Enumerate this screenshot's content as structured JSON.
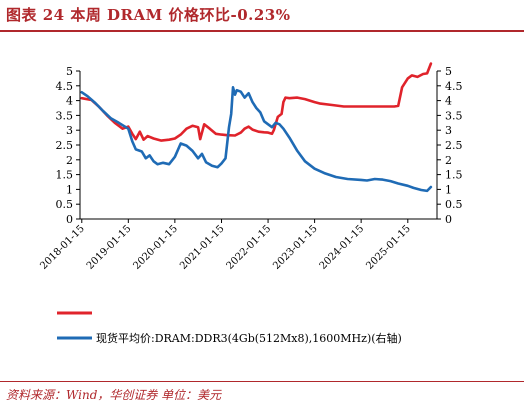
{
  "header": {
    "title": "图表  24    本周 DRAM 价格环比-0.23%"
  },
  "footer": {
    "source": "资料来源：Wind，华创证券    单位：美元"
  },
  "colors": {
    "accent": "#b0282c",
    "series_red": "#e0232b",
    "series_blue": "#1f6bb5"
  },
  "chart_data": {
    "type": "line",
    "title": "",
    "xlabel": "",
    "ylabel": "",
    "x_ticks": [
      "2018-01-15",
      "2019-01-15",
      "2020-01-15",
      "2021-01-15",
      "2022-01-15",
      "2023-01-15",
      "2024-01-15",
      "2025-01-15"
    ],
    "y_left_ticks": [
      "0",
      "0.5",
      "1",
      "1.5",
      "2",
      "2.5",
      "3",
      "3.5",
      "4",
      "4.5",
      "5"
    ],
    "y_right_ticks": [
      "0",
      "0.5",
      "1",
      "1.5",
      "2",
      "2.5",
      "3",
      "3.5",
      "4",
      "4.5",
      "5"
    ],
    "ylim_left": [
      0,
      5
    ],
    "ylim_right": [
      0,
      5
    ],
    "xlim": [
      "2018-01-01",
      "2025-09-01"
    ],
    "grid": false,
    "legend_position": "bottom",
    "series": [
      {
        "name": "",
        "axis": "left",
        "color": "#e0232b",
        "points": [
          [
            "2018-01-15",
            4.08
          ],
          [
            "2018-04-01",
            4.02
          ],
          [
            "2018-06-01",
            3.78
          ],
          [
            "2018-08-01",
            3.5
          ],
          [
            "2018-10-01",
            3.25
          ],
          [
            "2018-12-01",
            3.05
          ],
          [
            "2019-01-15",
            3.12
          ],
          [
            "2019-02-15",
            2.88
          ],
          [
            "2019-03-15",
            2.7
          ],
          [
            "2019-04-15",
            2.95
          ],
          [
            "2019-05-15",
            2.68
          ],
          [
            "2019-06-15",
            2.8
          ],
          [
            "2019-08-01",
            2.72
          ],
          [
            "2019-10-01",
            2.65
          ],
          [
            "2019-12-01",
            2.68
          ],
          [
            "2020-01-15",
            2.72
          ],
          [
            "2020-03-01",
            2.85
          ],
          [
            "2020-04-15",
            3.05
          ],
          [
            "2020-06-01",
            3.15
          ],
          [
            "2020-07-15",
            3.1
          ],
          [
            "2020-08-01",
            2.7
          ],
          [
            "2020-09-01",
            3.2
          ],
          [
            "2020-10-15",
            3.05
          ],
          [
            "2020-12-01",
            2.88
          ],
          [
            "2021-01-15",
            2.85
          ],
          [
            "2021-03-01",
            2.83
          ],
          [
            "2021-05-01",
            2.82
          ],
          [
            "2021-06-15",
            2.92
          ],
          [
            "2021-07-15",
            3.05
          ],
          [
            "2021-08-15",
            3.12
          ],
          [
            "2021-09-15",
            3.02
          ],
          [
            "2021-11-01",
            2.95
          ],
          [
            "2021-12-15",
            2.93
          ],
          [
            "2022-01-15",
            2.92
          ],
          [
            "2022-02-15",
            2.88
          ],
          [
            "2022-03-01",
            3.0
          ],
          [
            "2022-03-15",
            3.2
          ],
          [
            "2022-04-01",
            3.45
          ],
          [
            "2022-05-01",
            3.55
          ],
          [
            "2022-05-15",
            3.95
          ],
          [
            "2022-06-01",
            4.1
          ],
          [
            "2022-07-01",
            4.08
          ],
          [
            "2022-09-01",
            4.1
          ],
          [
            "2022-11-01",
            4.05
          ],
          [
            "2023-01-15",
            3.95
          ],
          [
            "2023-03-01",
            3.9
          ],
          [
            "2023-06-01",
            3.85
          ],
          [
            "2023-09-01",
            3.8
          ],
          [
            "2024-01-15",
            3.8
          ],
          [
            "2024-06-01",
            3.8
          ],
          [
            "2024-10-01",
            3.8
          ],
          [
            "2024-11-01",
            3.82
          ],
          [
            "2024-12-01",
            4.45
          ],
          [
            "2025-01-15",
            4.75
          ],
          [
            "2025-02-15",
            4.85
          ],
          [
            "2025-04-01",
            4.8
          ],
          [
            "2025-05-15",
            4.9
          ],
          [
            "2025-06-15",
            4.92
          ],
          [
            "2025-07-15",
            5.25
          ]
        ]
      },
      {
        "name": "现货平均价:DRAM:DDR3(4Gb(512Mx8),1600MHz)(右轴)",
        "axis": "right",
        "color": "#1f6bb5",
        "points": [
          [
            "2018-01-15",
            4.28
          ],
          [
            "2018-03-01",
            4.15
          ],
          [
            "2018-05-01",
            3.92
          ],
          [
            "2018-07-01",
            3.65
          ],
          [
            "2018-09-01",
            3.4
          ],
          [
            "2018-11-01",
            3.25
          ],
          [
            "2019-01-15",
            3.05
          ],
          [
            "2019-02-15",
            2.62
          ],
          [
            "2019-03-15",
            2.35
          ],
          [
            "2019-05-01",
            2.28
          ],
          [
            "2019-06-01",
            2.05
          ],
          [
            "2019-07-01",
            2.15
          ],
          [
            "2019-08-01",
            1.95
          ],
          [
            "2019-09-01",
            1.85
          ],
          [
            "2019-10-15",
            1.9
          ],
          [
            "2019-12-01",
            1.85
          ],
          [
            "2020-01-15",
            2.1
          ],
          [
            "2020-03-01",
            2.55
          ],
          [
            "2020-04-15",
            2.48
          ],
          [
            "2020-06-01",
            2.3
          ],
          [
            "2020-07-15",
            2.05
          ],
          [
            "2020-08-15",
            2.2
          ],
          [
            "2020-09-15",
            1.92
          ],
          [
            "2020-11-01",
            1.8
          ],
          [
            "2020-12-15",
            1.75
          ],
          [
            "2021-01-15",
            1.88
          ],
          [
            "2021-02-15",
            2.05
          ],
          [
            "2021-03-15",
            3.1
          ],
          [
            "2021-04-01",
            3.55
          ],
          [
            "2021-04-15",
            4.45
          ],
          [
            "2021-05-01",
            4.2
          ],
          [
            "2021-05-15",
            4.35
          ],
          [
            "2021-06-15",
            4.3
          ],
          [
            "2021-07-15",
            4.1
          ],
          [
            "2021-08-15",
            4.25
          ],
          [
            "2021-09-15",
            3.95
          ],
          [
            "2021-10-15",
            3.75
          ],
          [
            "2021-11-15",
            3.6
          ],
          [
            "2021-12-15",
            3.3
          ],
          [
            "2022-01-15",
            3.2
          ],
          [
            "2022-02-15",
            3.1
          ],
          [
            "2022-03-15",
            3.25
          ],
          [
            "2022-04-15",
            3.2
          ],
          [
            "2022-05-15",
            3.05
          ],
          [
            "2022-07-01",
            2.75
          ],
          [
            "2022-09-01",
            2.3
          ],
          [
            "2022-11-01",
            1.95
          ],
          [
            "2023-01-15",
            1.7
          ],
          [
            "2023-04-01",
            1.55
          ],
          [
            "2023-07-01",
            1.42
          ],
          [
            "2023-10-01",
            1.35
          ],
          [
            "2024-01-15",
            1.32
          ],
          [
            "2024-03-01",
            1.3
          ],
          [
            "2024-05-01",
            1.35
          ],
          [
            "2024-07-01",
            1.33
          ],
          [
            "2024-09-01",
            1.28
          ],
          [
            "2024-11-01",
            1.2
          ],
          [
            "2025-01-15",
            1.12
          ],
          [
            "2025-03-01",
            1.05
          ],
          [
            "2025-05-01",
            0.98
          ],
          [
            "2025-06-15",
            0.95
          ],
          [
            "2025-07-15",
            1.08
          ]
        ]
      }
    ]
  }
}
